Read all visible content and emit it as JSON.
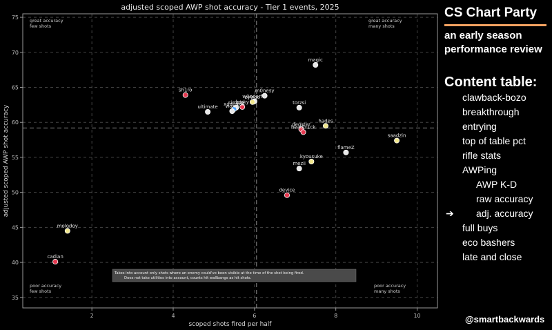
{
  "chart_data": {
    "type": "scatter",
    "title": "adjusted scoped AWP shot accuracy - Tier 1 events, 2025",
    "xlabel": "scoped shots fired per half",
    "ylabel": "adjusted scoped AWP shot accuracy",
    "xlim": [
      0.3,
      10.5
    ],
    "ylim": [
      33.5,
      75.5
    ],
    "xticks": [
      2,
      4,
      6,
      8,
      10
    ],
    "yticks": [
      35,
      40,
      45,
      50,
      55,
      60,
      65,
      70,
      75
    ],
    "grid": true,
    "reference_lines": {
      "x": 6.05,
      "y": 59.2
    },
    "points": [
      {
        "label": "magic",
        "x": 7.5,
        "y": 68.2,
        "color": "#e8e8e8"
      },
      {
        "label": "sh1ro",
        "x": 4.3,
        "y": 63.9,
        "color": "#e63950"
      },
      {
        "label": "m0nesy",
        "x": 6.25,
        "y": 63.8,
        "color": "#e8e8e8"
      },
      {
        "label": "w0nderful",
        "x": 6.0,
        "y": 63.0,
        "color": "#e8e8e8"
      },
      {
        "label": "zywoo",
        "x": 5.95,
        "y": 62.9,
        "color": "#f0e68c"
      },
      {
        "label": "broky",
        "x": 5.7,
        "y": 62.2,
        "color": "#e63950"
      },
      {
        "label": "simple",
        "x": 5.55,
        "y": 62.1,
        "color": "#e8e8e8"
      },
      {
        "label": "xantares",
        "x": 5.5,
        "y": 61.9,
        "color": "#4ea3ff"
      },
      {
        "label": "woxic",
        "x": 5.45,
        "y": 61.6,
        "color": "#e8e8e8"
      },
      {
        "label": "ultimate",
        "x": 4.85,
        "y": 61.5,
        "color": "#e8e8e8"
      },
      {
        "label": "torzsi",
        "x": 7.1,
        "y": 62.1,
        "color": "#e8e8e8"
      },
      {
        "label": "hades",
        "x": 7.75,
        "y": 59.5,
        "color": "#f0e68c"
      },
      {
        "label": "degster",
        "x": 7.15,
        "y": 59.0,
        "color": "#e63950"
      },
      {
        "label": "headtr1ck",
        "x": 7.2,
        "y": 58.6,
        "color": "#e63950"
      },
      {
        "label": "saadzin",
        "x": 9.5,
        "y": 57.4,
        "color": "#f0e68c"
      },
      {
        "label": "flameZ",
        "x": 8.25,
        "y": 55.7,
        "color": "#e8e8e8"
      },
      {
        "label": "kyousuke",
        "x": 7.4,
        "y": 54.4,
        "color": "#f0e68c"
      },
      {
        "label": "mezii",
        "x": 7.1,
        "y": 53.4,
        "color": "#e8e8e8"
      },
      {
        "label": "device",
        "x": 6.8,
        "y": 49.6,
        "color": "#e63950"
      },
      {
        "label": "molodoy",
        "x": 1.4,
        "y": 44.5,
        "color": "#f0e68c"
      },
      {
        "label": "cadian",
        "x": 1.1,
        "y": 40.1,
        "color": "#e63950"
      }
    ],
    "quadrants": {
      "top_left": [
        "great accuracy",
        "few shots"
      ],
      "top_right": [
        "great accuracy",
        "many shots"
      ],
      "bottom_left": [
        "poor accuracy",
        "few shots"
      ],
      "bottom_right": [
        "poor accuracy",
        "many shots"
      ]
    },
    "note": [
      "Takes into account only shots where an enemy could've been visible at the time of the shot being fired.",
      "Does not take utilities into account, counts hit wallbangs as hit shots."
    ]
  },
  "sidebar": {
    "title": "CS Chart Party",
    "subtitle_lines": [
      "an early season",
      "performance review"
    ],
    "toc_heading": "Content table:",
    "items": [
      {
        "label": "clawback-bozo",
        "indent": 0,
        "current": false
      },
      {
        "label": "breakthrough",
        "indent": 0,
        "current": false
      },
      {
        "label": "entrying",
        "indent": 0,
        "current": false
      },
      {
        "label": "top of table pct",
        "indent": 0,
        "current": false
      },
      {
        "label": "rifle stats",
        "indent": 0,
        "current": false
      },
      {
        "label": "AWPing",
        "indent": 0,
        "current": false
      },
      {
        "label": "AWP K-D",
        "indent": 1,
        "current": false
      },
      {
        "label": "raw accuracy",
        "indent": 1,
        "current": false
      },
      {
        "label": "adj. accuracy",
        "indent": 1,
        "current": true,
        "marker": "➔"
      },
      {
        "label": "full buys",
        "indent": 0,
        "current": false
      },
      {
        "label": "eco bashers",
        "indent": 0,
        "current": false
      },
      {
        "label": "late and close",
        "indent": 0,
        "current": false
      }
    ],
    "handle": "@smartbackwards"
  },
  "colors": {
    "background": "#000000",
    "accent": "#f4a261",
    "grid": "#444444",
    "axis": "#9a9a9a"
  }
}
